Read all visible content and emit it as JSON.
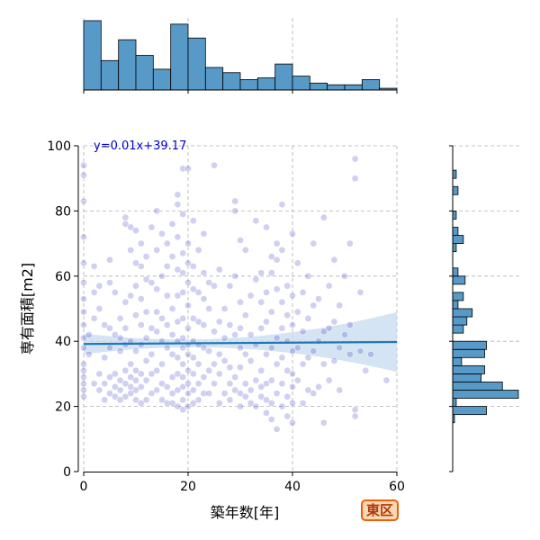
{
  "chart_data": {
    "type": "scatter",
    "xlabel": "築年数[年]",
    "ylabel": "専有面積[m2]",
    "xlim": [
      0,
      60
    ],
    "ylim": [
      0,
      100
    ],
    "x_ticks": [
      0,
      20,
      40,
      60
    ],
    "y_ticks": [
      0,
      20,
      40,
      60,
      80,
      100
    ],
    "grid": true,
    "regression": {
      "label": "y=0.01x+39.17",
      "slope": 0.01,
      "intercept": 39.17,
      "color": "#1f77b4",
      "band_color": "#c6dbef"
    },
    "point_color": "#2a2ac0",
    "point_counts_note": "",
    "points": [
      [
        0,
        94
      ],
      [
        0,
        91
      ],
      [
        0,
        83
      ],
      [
        0,
        72
      ],
      [
        0,
        64
      ],
      [
        0,
        58
      ],
      [
        0,
        53
      ],
      [
        0,
        49
      ],
      [
        0,
        45
      ],
      [
        0,
        41
      ],
      [
        0,
        38
      ],
      [
        0,
        33
      ],
      [
        0,
        31
      ],
      [
        0,
        29
      ],
      [
        0,
        27
      ],
      [
        0,
        25
      ],
      [
        0,
        23
      ],
      [
        1,
        36
      ],
      [
        1,
        42
      ],
      [
        2,
        27
      ],
      [
        2,
        47
      ],
      [
        2,
        55
      ],
      [
        2,
        63
      ],
      [
        3,
        25
      ],
      [
        3,
        30
      ],
      [
        3,
        50
      ],
      [
        3,
        57
      ],
      [
        4,
        22
      ],
      [
        4,
        27
      ],
      [
        4,
        35
      ],
      [
        4,
        45
      ],
      [
        5,
        24
      ],
      [
        5,
        29
      ],
      [
        5,
        38
      ],
      [
        5,
        44
      ],
      [
        5,
        58
      ],
      [
        5,
        65
      ],
      [
        6,
        23
      ],
      [
        6,
        26
      ],
      [
        6,
        30
      ],
      [
        6,
        42
      ],
      [
        6,
        55
      ],
      [
        7,
        22
      ],
      [
        7,
        25
      ],
      [
        7,
        28
      ],
      [
        7,
        37
      ],
      [
        7,
        41
      ],
      [
        7,
        47
      ],
      [
        8,
        23
      ],
      [
        8,
        27
      ],
      [
        8,
        31
      ],
      [
        8,
        39
      ],
      [
        8,
        44
      ],
      [
        8,
        52
      ],
      [
        8,
        76
      ],
      [
        8,
        78
      ],
      [
        9,
        24
      ],
      [
        9,
        26
      ],
      [
        9,
        29
      ],
      [
        9,
        33
      ],
      [
        9,
        40
      ],
      [
        9,
        54
      ],
      [
        9,
        68
      ],
      [
        9,
        75
      ],
      [
        10,
        22
      ],
      [
        10,
        25
      ],
      [
        10,
        28
      ],
      [
        10,
        31
      ],
      [
        10,
        37
      ],
      [
        10,
        48
      ],
      [
        10,
        57
      ],
      [
        10,
        64
      ],
      [
        10,
        74
      ],
      [
        11,
        21
      ],
      [
        11,
        26
      ],
      [
        11,
        30
      ],
      [
        11,
        39
      ],
      [
        11,
        45
      ],
      [
        11,
        53
      ],
      [
        11,
        63
      ],
      [
        11,
        70
      ],
      [
        12,
        22
      ],
      [
        12,
        28
      ],
      [
        12,
        34
      ],
      [
        12,
        41
      ],
      [
        12,
        49
      ],
      [
        12,
        59
      ],
      [
        12,
        66
      ],
      [
        13,
        24
      ],
      [
        13,
        30
      ],
      [
        13,
        36
      ],
      [
        13,
        44
      ],
      [
        13,
        58
      ],
      [
        13,
        75
      ],
      [
        14,
        25
      ],
      [
        14,
        31
      ],
      [
        14,
        43
      ],
      [
        14,
        49
      ],
      [
        14,
        56
      ],
      [
        14,
        68
      ],
      [
        14,
        80
      ],
      [
        15,
        22
      ],
      [
        15,
        27
      ],
      [
        15,
        33
      ],
      [
        15,
        40
      ],
      [
        15,
        47
      ],
      [
        15,
        60
      ],
      [
        15,
        73
      ],
      [
        16,
        21
      ],
      [
        16,
        26
      ],
      [
        16,
        38
      ],
      [
        16,
        45
      ],
      [
        16,
        54
      ],
      [
        16,
        63
      ],
      [
        16,
        70
      ],
      [
        17,
        21
      ],
      [
        17,
        24
      ],
      [
        17,
        29
      ],
      [
        17,
        36
      ],
      [
        17,
        42
      ],
      [
        17,
        50
      ],
      [
        17,
        66
      ],
      [
        17,
        76
      ],
      [
        18,
        20
      ],
      [
        18,
        25
      ],
      [
        18,
        30
      ],
      [
        18,
        35
      ],
      [
        18,
        40
      ],
      [
        18,
        46
      ],
      [
        18,
        54
      ],
      [
        18,
        62
      ],
      [
        18,
        72
      ],
      [
        18,
        82
      ],
      [
        18,
        85
      ],
      [
        19,
        19
      ],
      [
        19,
        22
      ],
      [
        19,
        26
      ],
      [
        19,
        29
      ],
      [
        19,
        33
      ],
      [
        19,
        38
      ],
      [
        19,
        41
      ],
      [
        19,
        47
      ],
      [
        19,
        55
      ],
      [
        19,
        61
      ],
      [
        19,
        67
      ],
      [
        19,
        79
      ],
      [
        19,
        93
      ],
      [
        20,
        20
      ],
      [
        20,
        24
      ],
      [
        20,
        27
      ],
      [
        20,
        31
      ],
      [
        20,
        36
      ],
      [
        20,
        39
      ],
      [
        20,
        44
      ],
      [
        20,
        51
      ],
      [
        20,
        58
      ],
      [
        20,
        64
      ],
      [
        20,
        70
      ],
      [
        20,
        93
      ],
      [
        21,
        21
      ],
      [
        21,
        25
      ],
      [
        21,
        30
      ],
      [
        21,
        35
      ],
      [
        21,
        40
      ],
      [
        21,
        47
      ],
      [
        21,
        56
      ],
      [
        21,
        63
      ],
      [
        21,
        77
      ],
      [
        22,
        22
      ],
      [
        22,
        27
      ],
      [
        22,
        33
      ],
      [
        22,
        39
      ],
      [
        22,
        46
      ],
      [
        22,
        55
      ],
      [
        22,
        68
      ],
      [
        23,
        24
      ],
      [
        23,
        29
      ],
      [
        23,
        38
      ],
      [
        23,
        45
      ],
      [
        23,
        53
      ],
      [
        23,
        61
      ],
      [
        23,
        73
      ],
      [
        24,
        24
      ],
      [
        24,
        31
      ],
      [
        24,
        37
      ],
      [
        24,
        50
      ],
      [
        24,
        58
      ],
      [
        25,
        27
      ],
      [
        25,
        33
      ],
      [
        25,
        43
      ],
      [
        25,
        57
      ],
      [
        25,
        94
      ],
      [
        26,
        21
      ],
      [
        26,
        30
      ],
      [
        26,
        36
      ],
      [
        26,
        46
      ],
      [
        26,
        62
      ],
      [
        27,
        24
      ],
      [
        27,
        34
      ],
      [
        27,
        41
      ],
      [
        27,
        50
      ],
      [
        28,
        22
      ],
      [
        28,
        27
      ],
      [
        28,
        32
      ],
      [
        28,
        45
      ],
      [
        28,
        57
      ],
      [
        29,
        25
      ],
      [
        29,
        29
      ],
      [
        29,
        42
      ],
      [
        29,
        60
      ],
      [
        29,
        83
      ],
      [
        29,
        80
      ],
      [
        30,
        20
      ],
      [
        30,
        24
      ],
      [
        30,
        32
      ],
      [
        30,
        38
      ],
      [
        30,
        44
      ],
      [
        30,
        52
      ],
      [
        30,
        71
      ],
      [
        31,
        23
      ],
      [
        31,
        27
      ],
      [
        31,
        36
      ],
      [
        31,
        48
      ],
      [
        31,
        68
      ],
      [
        32,
        21
      ],
      [
        32,
        25
      ],
      [
        32,
        34
      ],
      [
        32,
        42
      ],
      [
        32,
        54
      ],
      [
        33,
        20
      ],
      [
        33,
        28
      ],
      [
        33,
        39
      ],
      [
        33,
        59
      ],
      [
        33,
        77
      ],
      [
        34,
        23
      ],
      [
        34,
        26
      ],
      [
        34,
        31
      ],
      [
        34,
        44
      ],
      [
        34,
        52
      ],
      [
        34,
        61
      ],
      [
        35,
        18
      ],
      [
        35,
        22
      ],
      [
        35,
        27
      ],
      [
        35,
        36
      ],
      [
        35,
        46
      ],
      [
        35,
        55
      ],
      [
        35,
        75
      ],
      [
        36,
        16
      ],
      [
        36,
        21
      ],
      [
        36,
        28
      ],
      [
        36,
        38
      ],
      [
        36,
        49
      ],
      [
        36,
        61
      ],
      [
        36,
        66
      ],
      [
        37,
        13
      ],
      [
        37,
        24
      ],
      [
        37,
        33
      ],
      [
        37,
        41
      ],
      [
        37,
        56
      ],
      [
        37,
        65
      ],
      [
        37,
        70
      ],
      [
        38,
        20
      ],
      [
        38,
        27
      ],
      [
        38,
        35
      ],
      [
        38,
        44
      ],
      [
        38,
        52
      ],
      [
        38,
        68
      ],
      [
        38,
        82
      ],
      [
        39,
        17
      ],
      [
        39,
        23
      ],
      [
        39,
        31
      ],
      [
        39,
        40
      ],
      [
        39,
        48
      ],
      [
        39,
        57
      ],
      [
        40,
        15
      ],
      [
        40,
        21
      ],
      [
        40,
        26
      ],
      [
        40,
        30
      ],
      [
        40,
        37
      ],
      [
        40,
        45
      ],
      [
        40,
        54
      ],
      [
        40,
        73
      ],
      [
        41,
        28
      ],
      [
        41,
        38
      ],
      [
        41,
        49
      ],
      [
        41,
        64
      ],
      [
        42,
        21
      ],
      [
        42,
        33
      ],
      [
        42,
        43
      ],
      [
        42,
        55
      ],
      [
        43,
        25
      ],
      [
        43,
        35
      ],
      [
        43,
        47
      ],
      [
        43,
        60
      ],
      [
        44,
        24
      ],
      [
        44,
        37
      ],
      [
        44,
        51
      ],
      [
        44,
        70
      ],
      [
        45,
        26
      ],
      [
        45,
        40
      ],
      [
        45,
        53
      ],
      [
        46,
        15
      ],
      [
        46,
        33
      ],
      [
        46,
        43
      ],
      [
        46,
        78
      ],
      [
        47,
        28
      ],
      [
        47,
        44
      ],
      [
        47,
        57
      ],
      [
        48,
        34
      ],
      [
        48,
        46
      ],
      [
        48,
        65
      ],
      [
        49,
        25
      ],
      [
        49,
        38
      ],
      [
        49,
        51
      ],
      [
        50,
        42
      ],
      [
        50,
        60
      ],
      [
        51,
        36
      ],
      [
        51,
        45
      ],
      [
        51,
        70
      ],
      [
        52,
        90
      ],
      [
        52,
        96
      ],
      [
        52,
        17
      ],
      [
        52,
        19
      ],
      [
        53,
        37
      ],
      [
        53,
        55
      ],
      [
        54,
        31
      ],
      [
        55,
        36
      ],
      [
        58,
        28
      ]
    ],
    "top_hist": {
      "bin_edges": [
        0,
        3.33,
        6.67,
        10,
        13.33,
        16.67,
        20,
        23.33,
        26.67,
        30,
        33.33,
        36.67,
        40,
        43.33,
        46.67,
        50,
        53.33,
        56.67,
        60
      ],
      "counts": [
        40,
        17,
        29,
        20,
        12,
        38,
        30,
        13,
        10,
        6,
        7,
        15,
        8,
        4,
        3,
        3,
        6,
        1
      ]
    },
    "right_hist": {
      "bin_edges": [
        15,
        17.5,
        20,
        22.5,
        25,
        27.5,
        30,
        32.5,
        35,
        37.5,
        40,
        42.5,
        45,
        47.5,
        50,
        52.5,
        55,
        57.5,
        60,
        62.5,
        65,
        67.5,
        70,
        72.5,
        75,
        77.5,
        80,
        82.5,
        85,
        87.5,
        90,
        92.5
      ],
      "counts": [
        1,
        19,
        2,
        37,
        28,
        16,
        18,
        5,
        18,
        19,
        0,
        6,
        8,
        11,
        3,
        6,
        0,
        7,
        3,
        0,
        0,
        2,
        6,
        3,
        0,
        2,
        0,
        0,
        3,
        0,
        2
      ]
    },
    "badge": "東区"
  }
}
